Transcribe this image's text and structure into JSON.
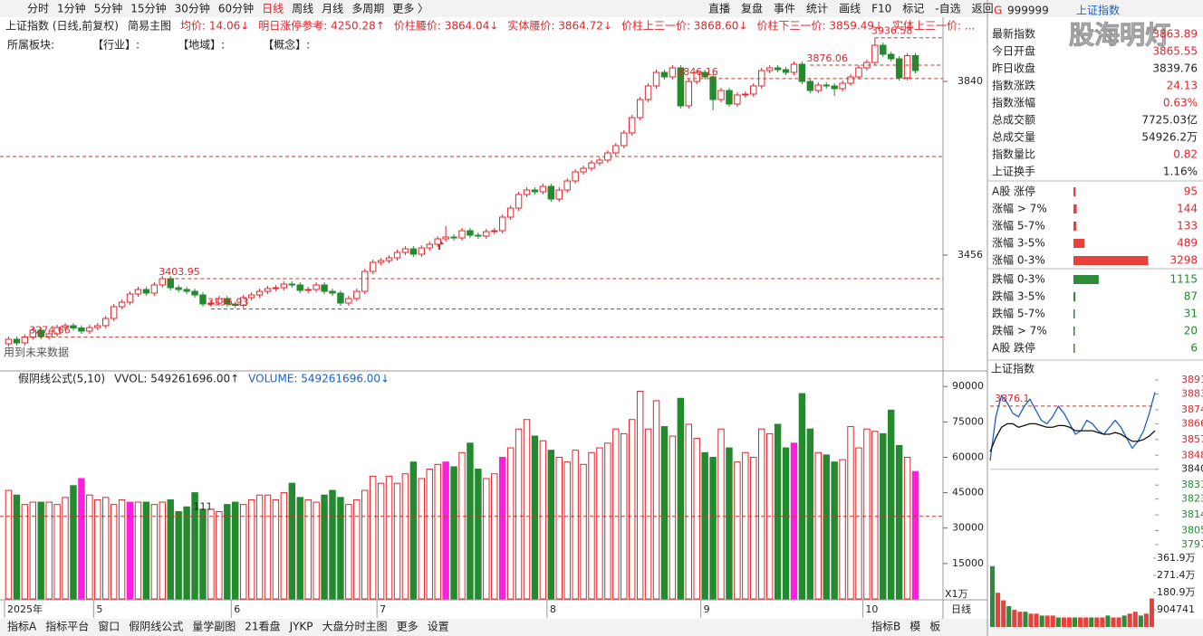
{
  "toolbar": [
    "分时",
    "1分钟",
    "5分钟",
    "15分钟",
    "30分钟",
    "60分钟",
    "日线",
    "周线",
    "月线",
    "多周期",
    "更多 〉"
  ],
  "toolbar_active": 6,
  "toolbar_right": [
    "直播",
    "复盘",
    "事件",
    "统计",
    "画线",
    "F10",
    "标记",
    "-自选",
    "返回"
  ],
  "info": [
    "上证指数 (日线,前复权)",
    "简易主图",
    "均价: 14.06↓",
    "明日涨停参考: 4250.28↑",
    "价柱腰价: 3864.04↓",
    "实体腰价: 3864.72↓",
    "价柱上三一价: 3868.60↓",
    "价柱下三一价: 3859.49↓",
    "实体上三一价: ..."
  ],
  "sectors": [
    "所属板块:",
    "【行业】:",
    "【地域】:",
    "【概念】:"
  ],
  "note": "用到未来数据",
  "main_chart": {
    "ylim": [
      3200,
      3940
    ],
    "yticks": [
      3840,
      3456
    ],
    "categories": [
      "2025年",
      null,
      null,
      null,
      null,
      null,
      null,
      null,
      null,
      null,
      null,
      "5",
      null,
      null,
      null,
      null,
      null,
      null,
      null,
      null,
      null,
      null,
      null,
      null,
      null,
      null,
      null,
      null,
      "6",
      null,
      null,
      null,
      null,
      null,
      null,
      null,
      null,
      null,
      null,
      null,
      null,
      null,
      null,
      null,
      null,
      null,
      "7",
      null,
      null,
      null,
      null,
      null,
      null,
      null,
      null,
      null,
      null,
      null,
      null,
      null,
      null,
      null,
      null,
      null,
      null,
      null,
      null,
      "8",
      null,
      null,
      null,
      null,
      null,
      null,
      null,
      null,
      null,
      null,
      null,
      null,
      null,
      null,
      null,
      null,
      null,
      null,
      "9",
      null,
      null,
      null,
      null,
      null,
      null,
      null,
      null,
      null,
      null,
      null,
      null,
      null,
      null,
      null,
      null,
      null,
      null,
      null,
      "10",
      null,
      null,
      null,
      null,
      null,
      null
    ],
    "candles": [
      [
        3260,
        3276,
        3254,
        3270
      ],
      [
        3270,
        3276,
        3256,
        3262
      ],
      [
        3262,
        3281,
        3256,
        3275
      ],
      [
        3275,
        3296,
        3269,
        3290
      ],
      [
        3290,
        3296,
        3270,
        3276
      ],
      [
        3276,
        3288,
        3270,
        3282
      ],
      [
        3282,
        3302,
        3276,
        3296
      ],
      [
        3296,
        3306,
        3290,
        3300
      ],
      [
        3300,
        3306,
        3289,
        3295
      ],
      [
        3295,
        3301,
        3282,
        3288
      ],
      [
        3288,
        3302,
        3282,
        3296
      ],
      [
        3296,
        3306,
        3290,
        3300
      ],
      [
        3300,
        3322,
        3294,
        3316
      ],
      [
        3316,
        3348,
        3310,
        3342
      ],
      [
        3342,
        3358,
        3336,
        3352
      ],
      [
        3352,
        3376,
        3346,
        3370
      ],
      [
        3370,
        3386,
        3364,
        3380
      ],
      [
        3380,
        3386,
        3366,
        3372
      ],
      [
        3372,
        3396,
        3366,
        3390
      ],
      [
        3390,
        3410,
        3384,
        3404
      ],
      [
        3404,
        3410,
        3378,
        3384
      ],
      [
        3384,
        3390,
        3374,
        3380
      ],
      [
        3380,
        3386,
        3370,
        3376
      ],
      [
        3376,
        3382,
        3362,
        3368
      ],
      [
        3368,
        3374,
        3342,
        3348
      ],
      [
        3348,
        3356,
        3342,
        3350
      ],
      [
        3350,
        3366,
        3344,
        3360
      ],
      [
        3360,
        3366,
        3342,
        3348
      ],
      [
        3348,
        3354,
        3339,
        3345
      ],
      [
        3345,
        3368,
        3339,
        3362
      ],
      [
        3362,
        3374,
        3356,
        3368
      ],
      [
        3368,
        3382,
        3362,
        3376
      ],
      [
        3376,
        3388,
        3370,
        3382
      ],
      [
        3382,
        3390,
        3376,
        3384
      ],
      [
        3384,
        3398,
        3378,
        3392
      ],
      [
        3392,
        3398,
        3384,
        3390
      ],
      [
        3390,
        3396,
        3372,
        3378
      ],
      [
        3378,
        3386,
        3372,
        3380
      ],
      [
        3380,
        3396,
        3374,
        3390
      ],
      [
        3390,
        3396,
        3370,
        3376
      ],
      [
        3376,
        3382,
        3366,
        3372
      ],
      [
        3372,
        3378,
        3344,
        3350
      ],
      [
        3350,
        3366,
        3344,
        3360
      ],
      [
        3360,
        3382,
        3354,
        3376
      ],
      [
        3376,
        3426,
        3370,
        3420
      ],
      [
        3420,
        3446,
        3414,
        3440
      ],
      [
        3440,
        3450,
        3434,
        3444
      ],
      [
        3444,
        3456,
        3438,
        3450
      ],
      [
        3450,
        3468,
        3444,
        3462
      ],
      [
        3462,
        3476,
        3456,
        3470
      ],
      [
        3470,
        3476,
        3452,
        3458
      ],
      [
        3458,
        3478,
        3452,
        3472
      ],
      [
        3472,
        3486,
        3466,
        3480
      ],
      [
        3480,
        3498,
        3474,
        3492
      ],
      [
        3492,
        3520,
        3486,
        3496
      ],
      [
        3496,
        3502,
        3488,
        3494
      ],
      [
        3494,
        3516,
        3488,
        3510
      ],
      [
        3510,
        3516,
        3494,
        3500
      ],
      [
        3500,
        3506,
        3492,
        3498
      ],
      [
        3498,
        3514,
        3492,
        3508
      ],
      [
        3508,
        3516,
        3502,
        3510
      ],
      [
        3510,
        3546,
        3504,
        3540
      ],
      [
        3540,
        3566,
        3534,
        3560
      ],
      [
        3560,
        3596,
        3554,
        3590
      ],
      [
        3590,
        3606,
        3584,
        3600
      ],
      [
        3600,
        3606,
        3590,
        3596
      ],
      [
        3596,
        3614,
        3590,
        3608
      ],
      [
        3608,
        3614,
        3574,
        3580
      ],
      [
        3580,
        3606,
        3574,
        3600
      ],
      [
        3600,
        3626,
        3594,
        3620
      ],
      [
        3620,
        3646,
        3614,
        3640
      ],
      [
        3640,
        3654,
        3634,
        3648
      ],
      [
        3648,
        3666,
        3642,
        3660
      ],
      [
        3660,
        3672,
        3654,
        3666
      ],
      [
        3666,
        3688,
        3660,
        3682
      ],
      [
        3682,
        3704,
        3676,
        3698
      ],
      [
        3698,
        3732,
        3692,
        3726
      ],
      [
        3726,
        3766,
        3720,
        3760
      ],
      [
        3760,
        3806,
        3754,
        3800
      ],
      [
        3800,
        3836,
        3794,
        3830
      ],
      [
        3830,
        3866,
        3824,
        3860
      ],
      [
        3860,
        3866,
        3844,
        3850
      ],
      [
        3850,
        3876,
        3844,
        3870
      ],
      [
        3870,
        3876,
        3780,
        3786
      ],
      [
        3786,
        3846,
        3780,
        3840
      ],
      [
        3840,
        3866,
        3834,
        3860
      ],
      [
        3860,
        3866,
        3844,
        3850
      ],
      [
        3850,
        3856,
        3776,
        3800
      ],
      [
        3800,
        3826,
        3794,
        3820
      ],
      [
        3820,
        3826,
        3784,
        3790
      ],
      [
        3790,
        3816,
        3784,
        3810
      ],
      [
        3810,
        3818,
        3804,
        3812
      ],
      [
        3812,
        3836,
        3806,
        3830
      ],
      [
        3830,
        3870,
        3824,
        3864
      ],
      [
        3864,
        3876,
        3858,
        3870
      ],
      [
        3870,
        3876,
        3860,
        3866
      ],
      [
        3866,
        3872,
        3854,
        3860
      ],
      [
        3860,
        3884,
        3854,
        3878
      ],
      [
        3878,
        3884,
        3834,
        3840
      ],
      [
        3840,
        3846,
        3814,
        3820
      ],
      [
        3820,
        3838,
        3814,
        3832
      ],
      [
        3832,
        3838,
        3824,
        3830
      ],
      [
        3830,
        3836,
        3808,
        3824
      ],
      [
        3824,
        3842,
        3818,
        3836
      ],
      [
        3836,
        3856,
        3830,
        3850
      ],
      [
        3850,
        3876,
        3844,
        3870
      ],
      [
        3870,
        3888,
        3864,
        3882
      ],
      [
        3882,
        3936.58,
        3876,
        3920
      ],
      [
        3920,
        3926,
        3894,
        3900
      ],
      [
        3900,
        3906,
        3884,
        3890
      ],
      [
        3890,
        3896,
        3842,
        3848
      ],
      [
        3848,
        3903,
        3842,
        3897
      ],
      [
        3897,
        3903,
        3858,
        3864
      ]
    ],
    "annotations": [
      {
        "value": 3274.66,
        "index": 3
      },
      {
        "value": 3403.95,
        "index": 19
      },
      {
        "value": 3336.93,
        "index": 25
      },
      {
        "value": 3846.16,
        "index": 83
      },
      {
        "value": 3876.06,
        "index": 99
      },
      {
        "value": 3936.58,
        "index": 107
      }
    ],
    "ref_lines": [
      3674
    ],
    "up_color": "#e0262c",
    "down_color": "#238a2e"
  },
  "volume_chart": {
    "header": [
      "假阴线公式(5,10)",
      "VVOL: 549261696.00↑",
      "VOLUME: 549261696.00↓"
    ],
    "ylim": [
      0,
      92000
    ],
    "yticks": [
      90000,
      75000,
      60000,
      45000,
      30000,
      15000
    ],
    "unit": "X1万",
    "ref_line": 35000,
    "marker": "111",
    "marker_index": 24,
    "volumes": [
      46000,
      44000,
      40000,
      41000,
      41000,
      41000,
      40000,
      43000,
      48000,
      51000,
      44000,
      42000,
      43000,
      40000,
      42000,
      41000,
      41000,
      41000,
      40000,
      41000,
      42000,
      37000,
      39000,
      45000,
      38000,
      38000,
      37000,
      40000,
      41000,
      40000,
      42000,
      44000,
      44000,
      42000,
      45000,
      49000,
      43000,
      42000,
      41000,
      44000,
      46000,
      43000,
      40000,
      42000,
      46000,
      52000,
      49000,
      52000,
      49000,
      53000,
      58000,
      51000,
      55000,
      57000,
      58000,
      56000,
      62000,
      66000,
      55000,
      51000,
      53000,
      60000,
      64000,
      72000,
      76000,
      69000,
      67000,
      63000,
      60000,
      58000,
      63000,
      57000,
      62000,
      64000,
      66000,
      72000,
      70000,
      76000,
      88000,
      72000,
      84000,
      73000,
      69000,
      85000,
      74000,
      68000,
      62000,
      60000,
      72000,
      64000,
      58000,
      62000,
      60000,
      72000,
      70000,
      74000,
      64000,
      66000,
      87000,
      72000,
      62000,
      61000,
      58000,
      59000,
      73000,
      64000,
      72000,
      71000,
      70000,
      80000,
      65000,
      60000,
      54000
    ],
    "highlight_bars": [
      9,
      15,
      54,
      61,
      97,
      112
    ],
    "highlight_color": "#ff1ee0"
  },
  "bottom_tabs": [
    "指标A",
    "指标平台",
    "窗口",
    "假阴线公式",
    "量学副图",
    "21看盘",
    "JYKP",
    "大盘分时主图",
    "更多",
    "设置"
  ],
  "bottom_right_tabs": [
    "指标B",
    "模",
    "板"
  ],
  "period_label": "日线",
  "panel": {
    "code_prefix": "G",
    "code": "999999",
    "name": "上证指数",
    "watermark": "股海明灯",
    "rows": [
      {
        "label": "最新指数",
        "value": "3863.89",
        "color": "red"
      },
      {
        "label": "今日开盘",
        "value": "3865.55",
        "color": "red"
      },
      {
        "label": "昨日收盘",
        "value": "3839.76",
        "color": "black"
      },
      {
        "label": "指数涨跌",
        "value": "24.13",
        "color": "red"
      },
      {
        "label": "指数涨幅",
        "value": "0.63%",
        "color": "red"
      },
      {
        "label": "总成交额",
        "value": "7725.03亿",
        "color": "black"
      },
      {
        "label": "总成交量",
        "value": "54926.2万",
        "color": "black"
      },
      {
        "label": "指数量比",
        "value": "0.82",
        "color": "red"
      },
      {
        "label": "上证换手",
        "value": "1.16%",
        "color": "black"
      }
    ],
    "breadth": [
      {
        "label": "A股 涨停",
        "value": 95,
        "color": "red"
      },
      {
        "label": "涨幅 > 7%",
        "value": 144,
        "color": "red"
      },
      {
        "label": "涨幅 5-7%",
        "value": 133,
        "color": "red"
      },
      {
        "label": "涨幅 3-5%",
        "value": 489,
        "color": "red"
      },
      {
        "label": "涨幅 0-3%",
        "value": 3298,
        "color": "red"
      },
      {
        "label": "跌幅 0-3%",
        "value": 1115,
        "color": "green"
      },
      {
        "label": "跌幅 3-5%",
        "value": 87,
        "color": "green"
      },
      {
        "label": "跌幅 5-7%",
        "value": 31,
        "color": "green"
      },
      {
        "label": "跌幅 > 7%",
        "value": 20,
        "color": "green"
      },
      {
        "label": "A股 跌停",
        "value": 6,
        "color": "green"
      }
    ]
  },
  "mini_chart": {
    "title": "上证指数",
    "ylim": [
      3797,
      3891
    ],
    "yticks": [
      3891,
      3883,
      3874,
      3866,
      3857,
      3848,
      3840,
      3831,
      3823,
      3814,
      3805,
      3797
    ],
    "base": 3840,
    "annotation": 3876.1,
    "price": [
      3845,
      3870,
      3882,
      3878,
      3872,
      3870,
      3876,
      3880,
      3874,
      3868,
      3866,
      3870,
      3876,
      3872,
      3866,
      3860,
      3862,
      3868,
      3866,
      3862,
      3860,
      3864,
      3868,
      3864,
      3858,
      3852,
      3856,
      3862,
      3872,
      3884
    ],
    "avg": [
      3850,
      3858,
      3864,
      3866,
      3866,
      3864,
      3865,
      3866,
      3866,
      3865,
      3864,
      3864,
      3865,
      3865,
      3864,
      3862,
      3862,
      3862,
      3862,
      3861,
      3860,
      3860,
      3861,
      3860,
      3858,
      3856,
      3856,
      3857,
      3859,
      3862
    ],
    "vlim": [
      0,
      3619000
    ],
    "vticks": [
      {
        "value": 3619000,
        "label": "361.9万"
      },
      {
        "value": 2714000,
        "label": "271.4万"
      },
      {
        "value": 1809000,
        "label": "180.9万"
      },
      904741
    ],
    "volumes": [
      3200000,
      1800000,
      1400000,
      1100000,
      900000,
      800000,
      800000,
      700000,
      700000,
      600000,
      600000,
      600000,
      500000,
      500000,
      500000,
      500000,
      500000,
      500000,
      500000,
      500000,
      500000,
      600000,
      500000,
      500000,
      600000,
      700000,
      800000,
      600000,
      700000,
      1500000
    ]
  }
}
